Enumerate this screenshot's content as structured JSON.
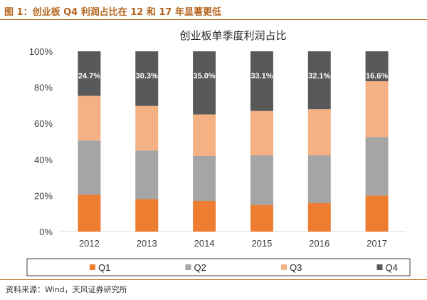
{
  "caption": "图 1：创业板 Q4 利润占比在 12 和 17 年显著更低",
  "source": "资料来源：Wind，天风证券研究所",
  "colors": {
    "Q1": "#ed7d31",
    "Q2": "#a5a5a5",
    "Q3": "#f4b183",
    "Q4": "#595959"
  },
  "chart_data": {
    "type": "bar",
    "stacked": true,
    "title": "创业板单季度利润占比",
    "categories": [
      "2012",
      "2013",
      "2014",
      "2015",
      "2016",
      "2017"
    ],
    "series": [
      {
        "name": "Q1",
        "values": [
          20.5,
          18.0,
          17.0,
          14.8,
          15.8,
          20.0
        ]
      },
      {
        "name": "Q2",
        "values": [
          30.0,
          27.0,
          25.0,
          27.5,
          26.5,
          32.5
        ]
      },
      {
        "name": "Q3",
        "values": [
          24.8,
          24.7,
          23.0,
          24.6,
          25.6,
          30.9
        ]
      },
      {
        "name": "Q4",
        "values": [
          24.7,
          30.3,
          35.0,
          33.1,
          32.1,
          16.6
        ]
      }
    ],
    "data_labels": {
      "Q4": [
        "24.7%",
        "30.3%",
        "35.0%",
        "33.1%",
        "32.1%",
        "16.6%"
      ]
    },
    "yticks": [
      "0%",
      "20%",
      "40%",
      "60%",
      "80%",
      "100%"
    ],
    "ylim": [
      0,
      100
    ],
    "grid": false,
    "legend": "bottom",
    "xlabel": "",
    "ylabel": ""
  }
}
